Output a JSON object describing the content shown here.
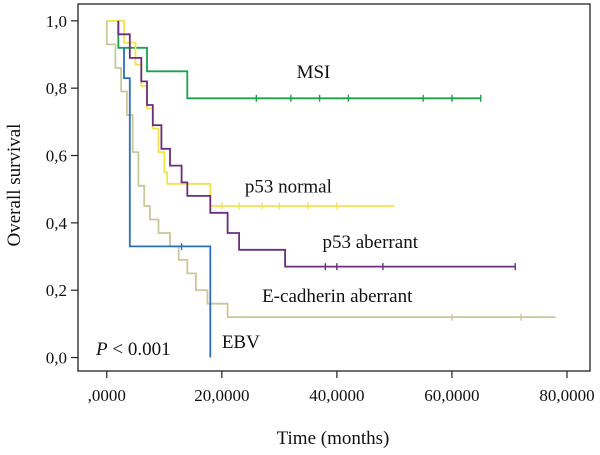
{
  "chart_data": {
    "type": "line",
    "title": "",
    "xlabel": "Time (months)",
    "ylabel": "Overall survival",
    "xlim": [
      -5000,
      84000
    ],
    "ylim": [
      -0.04,
      1.05
    ],
    "x_ticks": [
      {
        "value": 0,
        "label": ",0000"
      },
      {
        "value": 20000,
        "label": "20,0000"
      },
      {
        "value": 40000,
        "label": "40,0000"
      },
      {
        "value": 60000,
        "label": "60,0000"
      },
      {
        "value": 80000,
        "label": "80,0000"
      }
    ],
    "y_ticks": [
      {
        "value": 0.0,
        "label": "0,0"
      },
      {
        "value": 0.2,
        "label": "0,2"
      },
      {
        "value": 0.4,
        "label": "0,4"
      },
      {
        "value": 0.6,
        "label": "0,6"
      },
      {
        "value": 0.8,
        "label": "0,8"
      },
      {
        "value": 1.0,
        "label": "1,0"
      }
    ],
    "grid": false,
    "annotation": {
      "text": "P < 0.001",
      "italic_part": "P",
      "rest": " < 0.001"
    },
    "series": [
      {
        "name": "MSI",
        "color": "#1aa34a",
        "points": [
          [
            2000,
            1.0
          ],
          [
            2000,
            0.92
          ],
          [
            7000,
            0.92
          ],
          [
            7000,
            0.85
          ],
          [
            14000,
            0.85
          ],
          [
            14000,
            0.77
          ],
          [
            65000,
            0.77
          ]
        ],
        "censored": [
          [
            26000,
            0.77
          ],
          [
            32000,
            0.77
          ],
          [
            37000,
            0.77
          ],
          [
            42000,
            0.77
          ],
          [
            55000,
            0.77
          ],
          [
            60000,
            0.77
          ],
          [
            65000,
            0.77
          ]
        ],
        "label_at": [
          33000,
          0.83
        ]
      },
      {
        "name": "p53 normal",
        "color": "#f2e34c",
        "points": [
          [
            0,
            1.0
          ],
          [
            3000,
            1.0
          ],
          [
            3000,
            0.935
          ],
          [
            5000,
            0.935
          ],
          [
            5000,
            0.87
          ],
          [
            6000,
            0.87
          ],
          [
            6000,
            0.806
          ],
          [
            7000,
            0.806
          ],
          [
            7000,
            0.74
          ],
          [
            8000,
            0.74
          ],
          [
            8000,
            0.68
          ],
          [
            9000,
            0.68
          ],
          [
            9000,
            0.61
          ],
          [
            10000,
            0.61
          ],
          [
            10000,
            0.55
          ],
          [
            10500,
            0.55
          ],
          [
            10500,
            0.516
          ],
          [
            18000,
            0.516
          ],
          [
            18000,
            0.45
          ],
          [
            50000,
            0.45
          ]
        ],
        "censored": [
          [
            20000,
            0.45
          ],
          [
            23000,
            0.45
          ],
          [
            27000,
            0.45
          ],
          [
            30000,
            0.45
          ],
          [
            35000,
            0.45
          ],
          [
            40000,
            0.45
          ]
        ],
        "label_at": [
          24000,
          0.49
        ]
      },
      {
        "name": "p53 aberrant",
        "color": "#6a2e7e",
        "points": [
          [
            2000,
            1.0
          ],
          [
            2000,
            0.96
          ],
          [
            4000,
            0.96
          ],
          [
            4000,
            0.89
          ],
          [
            6000,
            0.89
          ],
          [
            6000,
            0.82
          ],
          [
            7000,
            0.82
          ],
          [
            7000,
            0.75
          ],
          [
            8000,
            0.75
          ],
          [
            8000,
            0.69
          ],
          [
            9500,
            0.69
          ],
          [
            9500,
            0.62
          ],
          [
            11000,
            0.62
          ],
          [
            11000,
            0.57
          ],
          [
            13000,
            0.57
          ],
          [
            13000,
            0.52
          ],
          [
            14000,
            0.52
          ],
          [
            14000,
            0.48
          ],
          [
            18000,
            0.48
          ],
          [
            18000,
            0.43
          ],
          [
            21000,
            0.43
          ],
          [
            21000,
            0.37
          ],
          [
            23000,
            0.37
          ],
          [
            23000,
            0.32
          ],
          [
            31000,
            0.32
          ],
          [
            31000,
            0.27
          ],
          [
            71000,
            0.27
          ]
        ],
        "censored": [
          [
            38000,
            0.27
          ],
          [
            40000,
            0.27
          ],
          [
            48000,
            0.27
          ],
          [
            71000,
            0.27
          ]
        ],
        "label_at": [
          37500,
          0.325
        ]
      },
      {
        "name": "E-cadherin aberrant",
        "color": "#c9c89a",
        "points": [
          [
            0,
            1.0
          ],
          [
            0,
            0.93
          ],
          [
            1500,
            0.93
          ],
          [
            1500,
            0.86
          ],
          [
            2500,
            0.86
          ],
          [
            2500,
            0.79
          ],
          [
            3500,
            0.79
          ],
          [
            3500,
            0.72
          ],
          [
            4500,
            0.72
          ],
          [
            4500,
            0.61
          ],
          [
            5500,
            0.61
          ],
          [
            5500,
            0.51
          ],
          [
            6500,
            0.51
          ],
          [
            6500,
            0.45
          ],
          [
            7500,
            0.45
          ],
          [
            7500,
            0.41
          ],
          [
            9000,
            0.41
          ],
          [
            9000,
            0.37
          ],
          [
            11000,
            0.37
          ],
          [
            11000,
            0.33
          ],
          [
            12500,
            0.33
          ],
          [
            12500,
            0.29
          ],
          [
            14000,
            0.29
          ],
          [
            14000,
            0.25
          ],
          [
            15500,
            0.25
          ],
          [
            15500,
            0.2
          ],
          [
            17500,
            0.2
          ],
          [
            17500,
            0.16
          ],
          [
            21000,
            0.16
          ],
          [
            21000,
            0.12
          ],
          [
            78000,
            0.12
          ]
        ],
        "censored": [
          [
            60000,
            0.12
          ],
          [
            72000,
            0.12
          ]
        ],
        "label_at": [
          27000,
          0.165
        ]
      },
      {
        "name": "EBV",
        "color": "#2c6fbf",
        "points": [
          [
            3000,
            0.92
          ],
          [
            3000,
            0.83
          ],
          [
            4000,
            0.83
          ],
          [
            4000,
            0.75
          ],
          [
            4000,
            0.33
          ],
          [
            18000,
            0.33
          ],
          [
            18000,
            0.0
          ]
        ],
        "censored": [
          [
            13000,
            0.33
          ]
        ],
        "label_at": [
          20000,
          0.028
        ]
      }
    ]
  }
}
